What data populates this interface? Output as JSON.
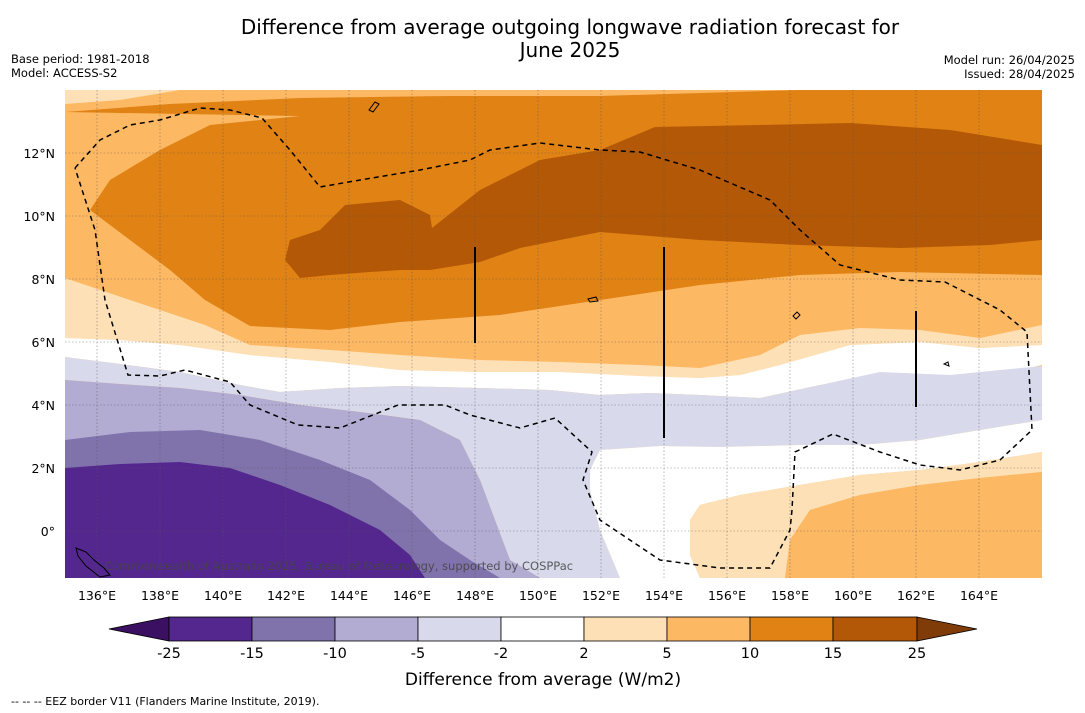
{
  "header": {
    "title_line1": "Difference from average outgoing longwave radiation forecast for",
    "title_line2": "June 2025",
    "base_period": "Base period: 1981-2018",
    "model": "Model: ACCESS-S2",
    "model_run": "Model run: 26/04/2025",
    "issued": "Issued: 28/04/2025"
  },
  "map": {
    "lon_labels": [
      "136°E",
      "138°E",
      "140°E",
      "142°E",
      "144°E",
      "146°E",
      "148°E",
      "150°E",
      "152°E",
      "154°E",
      "156°E",
      "158°E",
      "160°E",
      "162°E",
      "164°E"
    ],
    "lat_labels": [
      "12°N",
      "10°N",
      "8°N",
      "6°N",
      "4°N",
      "2°N",
      "0°"
    ],
    "watermark": "Commonwealth of Australia 2025, Bureau of Meteorology, supported by COSPPac"
  },
  "colorbar": {
    "labels": [
      "-25",
      "-15",
      "-10",
      "-5",
      "-2",
      "2",
      "5",
      "10",
      "15",
      "25"
    ],
    "title": "Difference from average (W/m2)",
    "colors": {
      "below": "#3b0f61",
      "c1": "#54278f",
      "c2": "#8073ac",
      "c3": "#b2abd2",
      "c4": "#d8daeb",
      "c5": "#ffffff",
      "c6": "#fee0b6",
      "c7": "#fdb863",
      "c8": "#e08214",
      "c9": "#b35806",
      "above": "#7f3b08"
    }
  },
  "footer": {
    "note": "--  --  -- EEZ border V11 (Flanders Marine Institute, 2019)."
  }
}
